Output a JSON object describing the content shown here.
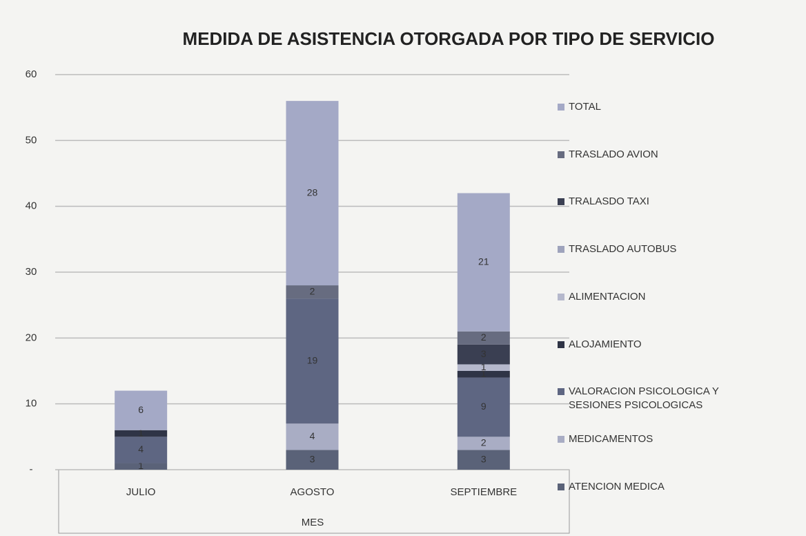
{
  "chart_data": {
    "type": "stacked_bar",
    "title": "MEDIDA DE ASISTENCIA OTORGADA POR TIPO DE SERVICIO",
    "x_label": "MES",
    "categories": [
      "JULIO",
      "AGOSTO",
      "SEPTIEMBRE"
    ],
    "series": [
      {
        "name": "ATENCION MEDICA",
        "color": "#5a6278",
        "values": [
          1,
          3,
          3
        ]
      },
      {
        "name": "MEDICAMENTOS",
        "color": "#a9adc4",
        "values": [
          0,
          4,
          2
        ]
      },
      {
        "name": "VALORACION PSICOLOGICA Y SESIONES PSICOLOGICAS",
        "color": "#5e6682",
        "values": [
          4,
          19,
          9
        ]
      },
      {
        "name": "ALOJAMIENTO",
        "color": "#2f3446",
        "values": [
          1,
          0,
          1
        ]
      },
      {
        "name": "ALIMENTACION",
        "color": "#b5b8cc",
        "values": [
          0,
          0,
          1
        ]
      },
      {
        "name": "TRASLADO AUTOBUS",
        "color": "#9ea3bc",
        "values": [
          0,
          0,
          0
        ]
      },
      {
        "name": "TRALASDO TAXI",
        "color": "#3a3f52",
        "values": [
          0,
          0,
          3
        ]
      },
      {
        "name": "TRASLADO AVION",
        "color": "#676c80",
        "values": [
          0,
          2,
          2
        ]
      },
      {
        "name": "TOTAL",
        "color": "#a4a9c6",
        "values": [
          6,
          28,
          21
        ]
      }
    ],
    "ylim": [
      0,
      60
    ],
    "yticks": [
      {
        "value": 0,
        "label": "-"
      },
      10,
      20,
      30,
      40,
      50,
      60
    ],
    "grid": true,
    "legend": "right"
  }
}
